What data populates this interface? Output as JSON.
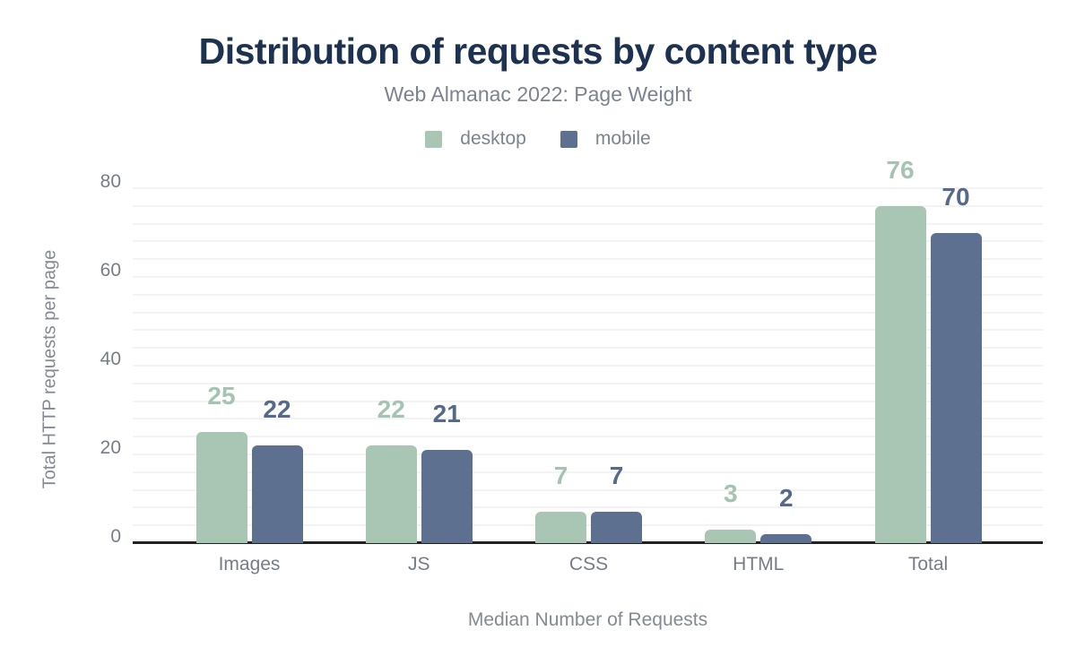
{
  "chart_data": {
    "type": "bar",
    "title": "Distribution of requests by content type",
    "subtitle": "Web Almanac 2022: Page Weight",
    "categories": [
      "Images",
      "JS",
      "CSS",
      "HTML",
      "Total"
    ],
    "series": [
      {
        "name": "desktop",
        "color": "#a9c6b4",
        "label_color": "#a4c3b1",
        "values": [
          25,
          22,
          7,
          3,
          76
        ]
      },
      {
        "name": "mobile",
        "color": "#5d7090",
        "label_color": "#56698b",
        "values": [
          22,
          21,
          7,
          2,
          70
        ]
      }
    ],
    "xlabel": "Median Number of Requests",
    "ylabel": "Total HTTP requests per page",
    "yticks": [
      0,
      20,
      40,
      60,
      80
    ],
    "ylim": [
      0,
      85
    ],
    "minor_grid_step": 4,
    "grid": true,
    "legend_position": "top"
  },
  "colors": {
    "title": "#1d3150",
    "subtitle": "#7c8390",
    "axis_text": "#767d89",
    "axis_title_text": "#848a93",
    "axis_line": "#222222",
    "gridline": "#f3f3f3",
    "background": "#ffffff"
  }
}
